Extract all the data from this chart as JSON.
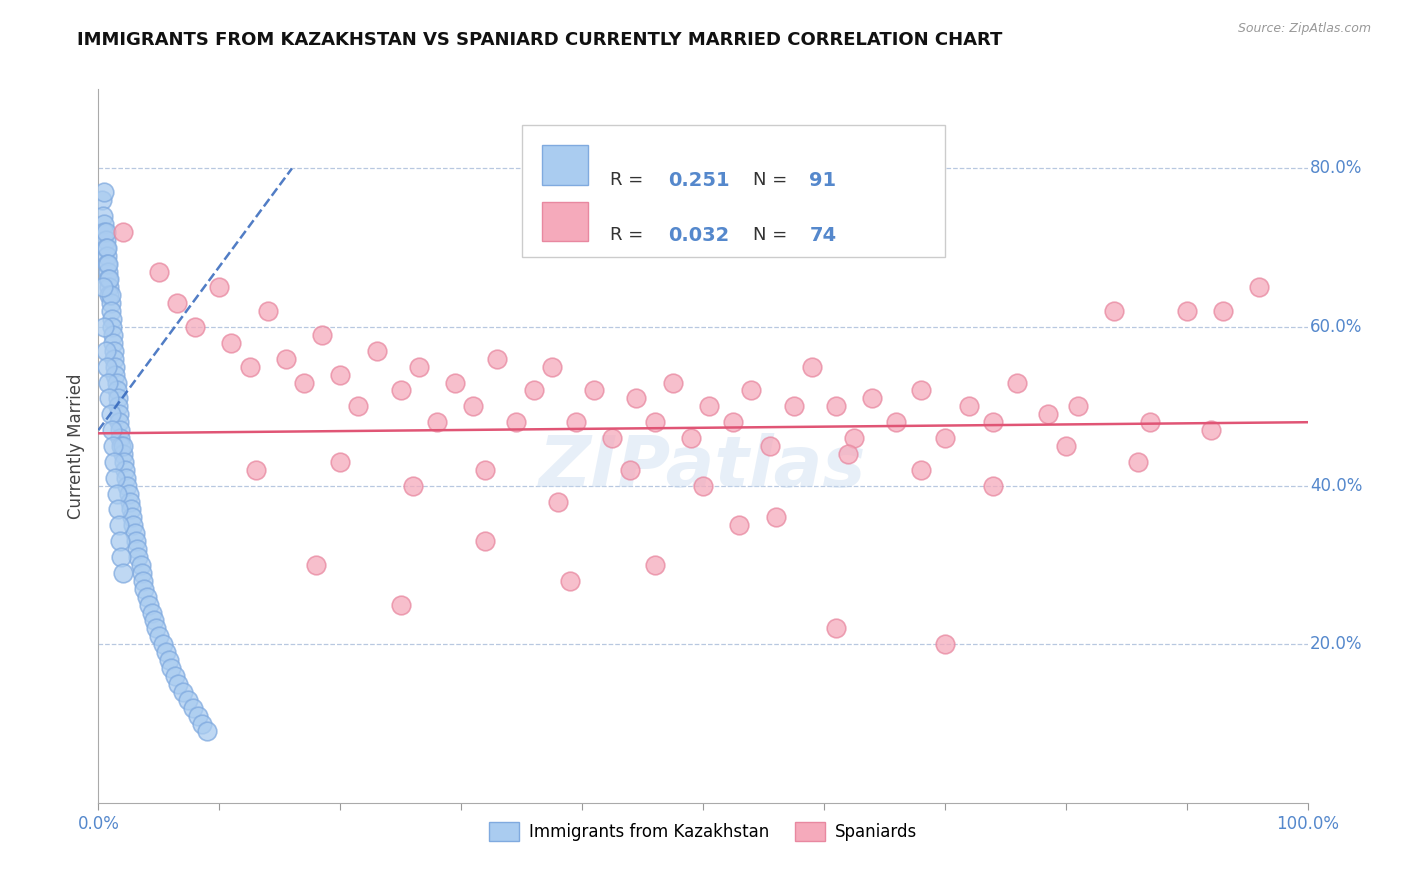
{
  "title": "IMMIGRANTS FROM KAZAKHSTAN VS SPANIARD CURRENTLY MARRIED CORRELATION CHART",
  "source": "Source: ZipAtlas.com",
  "ylabel": "Currently Married",
  "y_tick_labels_right": [
    "20.0%",
    "40.0%",
    "60.0%",
    "80.0%"
  ],
  "y_ticks": [
    0.2,
    0.4,
    0.6,
    0.8
  ],
  "x_range": [
    0.0,
    1.0
  ],
  "y_range": [
    0.0,
    0.9
  ],
  "blue_R": "0.251",
  "blue_N": "91",
  "pink_R": "0.032",
  "pink_N": "74",
  "blue_color": "#aaccf0",
  "pink_color": "#f5aabb",
  "blue_edge_color": "#80aadf",
  "pink_edge_color": "#e888a0",
  "blue_trend_color": "#3366bb",
  "pink_trend_color": "#e05575",
  "watermark": "ZIPatlas",
  "legend_label_blue": "Immigrants from Kazakhstan",
  "legend_label_pink": "Spaniards",
  "blue_points_x": [
    0.003,
    0.004,
    0.005,
    0.005,
    0.005,
    0.006,
    0.006,
    0.006,
    0.007,
    0.007,
    0.007,
    0.008,
    0.008,
    0.008,
    0.009,
    0.009,
    0.009,
    0.01,
    0.01,
    0.01,
    0.011,
    0.011,
    0.012,
    0.012,
    0.013,
    0.013,
    0.014,
    0.014,
    0.015,
    0.015,
    0.016,
    0.016,
    0.017,
    0.017,
    0.018,
    0.018,
    0.019,
    0.02,
    0.02,
    0.021,
    0.022,
    0.023,
    0.024,
    0.025,
    0.026,
    0.027,
    0.028,
    0.029,
    0.03,
    0.031,
    0.032,
    0.033,
    0.035,
    0.036,
    0.037,
    0.038,
    0.04,
    0.042,
    0.044,
    0.046,
    0.048,
    0.05,
    0.053,
    0.056,
    0.058,
    0.06,
    0.063,
    0.066,
    0.07,
    0.074,
    0.078,
    0.082,
    0.086,
    0.09,
    0.004,
    0.005,
    0.006,
    0.007,
    0.008,
    0.009,
    0.01,
    0.011,
    0.012,
    0.013,
    0.014,
    0.015,
    0.016,
    0.017,
    0.018,
    0.019,
    0.02
  ],
  "blue_points_y": [
    0.76,
    0.74,
    0.73,
    0.72,
    0.77,
    0.71,
    0.72,
    0.7,
    0.69,
    0.7,
    0.68,
    0.67,
    0.68,
    0.66,
    0.65,
    0.66,
    0.64,
    0.63,
    0.64,
    0.62,
    0.61,
    0.6,
    0.59,
    0.58,
    0.57,
    0.56,
    0.55,
    0.54,
    0.53,
    0.52,
    0.51,
    0.5,
    0.49,
    0.48,
    0.47,
    0.46,
    0.45,
    0.44,
    0.45,
    0.43,
    0.42,
    0.41,
    0.4,
    0.39,
    0.38,
    0.37,
    0.36,
    0.35,
    0.34,
    0.33,
    0.32,
    0.31,
    0.3,
    0.29,
    0.28,
    0.27,
    0.26,
    0.25,
    0.24,
    0.23,
    0.22,
    0.21,
    0.2,
    0.19,
    0.18,
    0.17,
    0.16,
    0.15,
    0.14,
    0.13,
    0.12,
    0.11,
    0.1,
    0.09,
    0.65,
    0.6,
    0.57,
    0.55,
    0.53,
    0.51,
    0.49,
    0.47,
    0.45,
    0.43,
    0.41,
    0.39,
    0.37,
    0.35,
    0.33,
    0.31,
    0.29
  ],
  "pink_points_x": [
    0.02,
    0.05,
    0.065,
    0.08,
    0.1,
    0.11,
    0.125,
    0.14,
    0.155,
    0.17,
    0.185,
    0.2,
    0.215,
    0.23,
    0.25,
    0.265,
    0.28,
    0.295,
    0.31,
    0.33,
    0.345,
    0.36,
    0.375,
    0.395,
    0.41,
    0.425,
    0.445,
    0.46,
    0.475,
    0.49,
    0.505,
    0.525,
    0.54,
    0.555,
    0.575,
    0.59,
    0.61,
    0.625,
    0.64,
    0.66,
    0.68,
    0.7,
    0.72,
    0.74,
    0.76,
    0.785,
    0.81,
    0.84,
    0.87,
    0.9,
    0.93,
    0.96,
    0.13,
    0.2,
    0.26,
    0.32,
    0.38,
    0.44,
    0.5,
    0.56,
    0.62,
    0.68,
    0.74,
    0.8,
    0.86,
    0.92,
    0.18,
    0.25,
    0.32,
    0.39,
    0.46,
    0.53,
    0.61,
    0.7
  ],
  "pink_points_y": [
    0.72,
    0.67,
    0.63,
    0.6,
    0.65,
    0.58,
    0.55,
    0.62,
    0.56,
    0.53,
    0.59,
    0.54,
    0.5,
    0.57,
    0.52,
    0.55,
    0.48,
    0.53,
    0.5,
    0.56,
    0.48,
    0.52,
    0.55,
    0.48,
    0.52,
    0.46,
    0.51,
    0.48,
    0.53,
    0.46,
    0.5,
    0.48,
    0.52,
    0.45,
    0.5,
    0.55,
    0.5,
    0.46,
    0.51,
    0.48,
    0.52,
    0.46,
    0.5,
    0.48,
    0.53,
    0.49,
    0.5,
    0.62,
    0.48,
    0.62,
    0.62,
    0.65,
    0.42,
    0.43,
    0.4,
    0.42,
    0.38,
    0.42,
    0.4,
    0.36,
    0.44,
    0.42,
    0.4,
    0.45,
    0.43,
    0.47,
    0.3,
    0.25,
    0.33,
    0.28,
    0.3,
    0.35,
    0.22,
    0.2
  ],
  "x_tick_positions": [
    0.0,
    0.1,
    0.2,
    0.3,
    0.4,
    0.5,
    0.6,
    0.7,
    0.8,
    0.9,
    1.0
  ],
  "pink_trend_start_x": 0.0,
  "pink_trend_end_x": 1.0,
  "pink_trend_start_y": 0.466,
  "pink_trend_end_y": 0.48,
  "blue_trend_start_x": 0.0,
  "blue_trend_end_x": 0.16,
  "blue_trend_start_y": 0.47,
  "blue_trend_end_y": 0.8
}
